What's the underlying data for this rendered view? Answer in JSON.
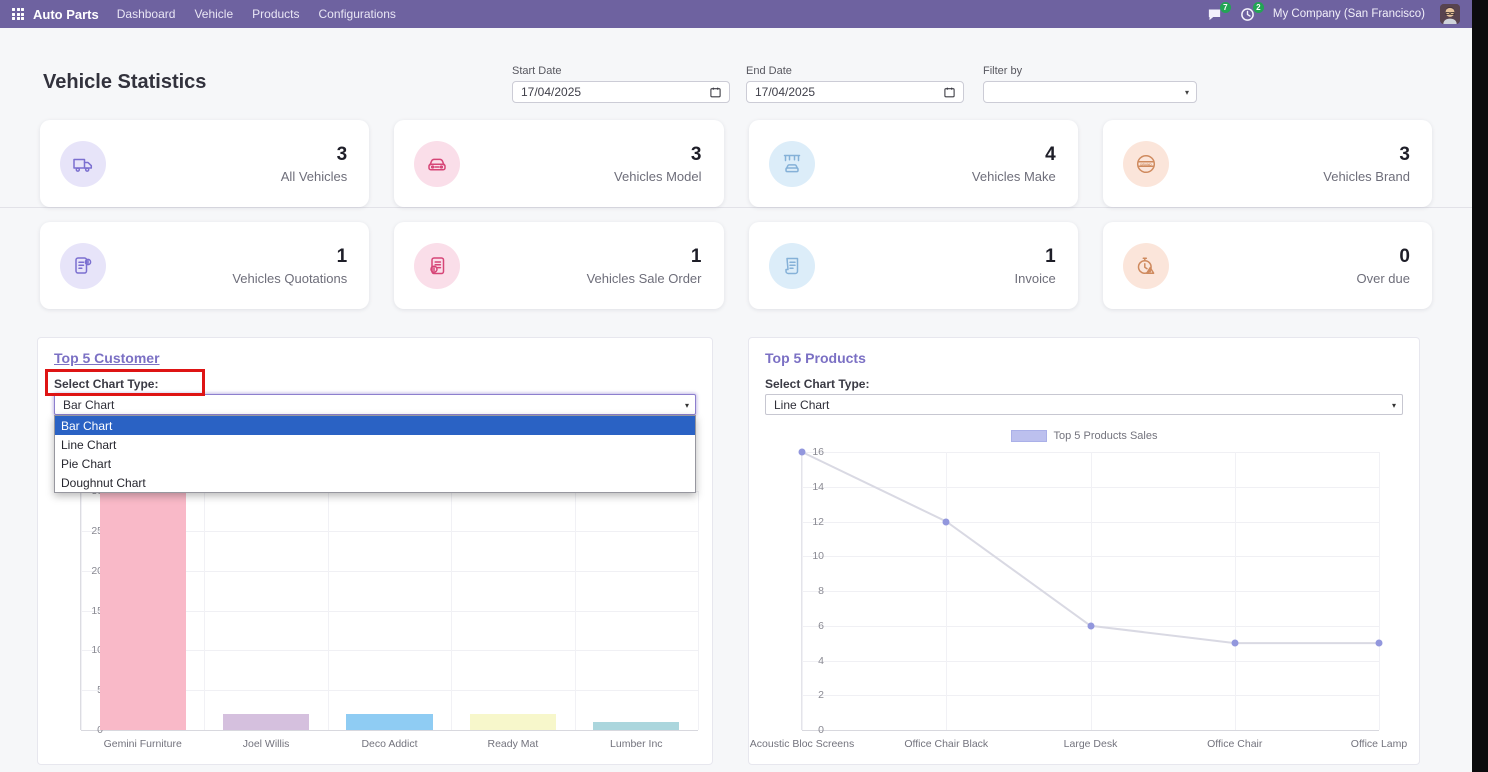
{
  "navbar": {
    "app_name": "Auto Parts",
    "menu_items": [
      "Dashboard",
      "Vehicle",
      "Products",
      "Configurations"
    ],
    "messages_badge": "7",
    "activities_badge": "2",
    "company": "My Company (San Francisco)"
  },
  "header": {
    "title": "Vehicle Statistics",
    "start_date_label": "Start Date",
    "start_date_value": "17/04/2025",
    "end_date_label": "End Date",
    "end_date_value": "17/04/2025",
    "filter_label": "Filter by",
    "filter_value": ""
  },
  "stat_cards": [
    {
      "value": "3",
      "label": "All Vehicles",
      "icon": "truck-icon",
      "fg": "#7b6fd0",
      "bg": "#e7e4f9"
    },
    {
      "value": "3",
      "label": "Vehicles Model",
      "icon": "car-icon",
      "fg": "#d64577",
      "bg": "#fadee9"
    },
    {
      "value": "4",
      "label": "Vehicles Make",
      "icon": "dealership-icon",
      "fg": "#85b1d8",
      "bg": "#dcedf9"
    },
    {
      "value": "3",
      "label": "Vehicles Brand",
      "icon": "brand-badge-icon",
      "fg": "#cf8a5e",
      "bg": "#fbe5da"
    },
    {
      "value": "1",
      "label": "Vehicles Quotations",
      "icon": "quotation-icon",
      "fg": "#7b6fd0",
      "bg": "#e7e4f9"
    },
    {
      "value": "1",
      "label": "Vehicles Sale Order",
      "icon": "sale-order-icon",
      "fg": "#d64577",
      "bg": "#fadee9"
    },
    {
      "value": "1",
      "label": "Invoice",
      "icon": "invoice-icon",
      "fg": "#85b1d8",
      "bg": "#dcedf9"
    },
    {
      "value": "0",
      "label": "Over due",
      "icon": "overdue-clock-icon",
      "fg": "#cf8a5e",
      "bg": "#fbe5da"
    }
  ],
  "customer_section": {
    "title": "Top 5 Customer",
    "select_label": "Select Chart Type:",
    "selected_option": "Bar Chart",
    "dropdown_options": [
      "Bar Chart",
      "Line Chart",
      "Pie Chart",
      "Doughnut Chart"
    ],
    "dropdown_selected_index": 0,
    "annotation": {
      "type": "highlight-box",
      "color": "#de1414",
      "target": "select-chart-type-label"
    }
  },
  "products_section": {
    "title": "Top 5 Products",
    "select_label": "Select Chart Type:",
    "selected_option": "Line Chart",
    "legend_label": "Top 5 Products Sales"
  },
  "chart_data": [
    {
      "id": "top5-customer",
      "type": "bar",
      "title": "Top 5 Customer",
      "categories": [
        "Gemini Furniture",
        "Joel Willis",
        "Deco Addict",
        "Ready Mat",
        "Lumber Inc"
      ],
      "values": [
        30,
        2,
        2,
        2,
        1
      ],
      "bar_colors": [
        "#f9b9c8",
        "#d5c0de",
        "#8fccf3",
        "#f7f7cb",
        "#abd6dd"
      ],
      "ylim": [
        0,
        30
      ],
      "ytick_step": 5,
      "grid": true,
      "legend_position": "none"
    },
    {
      "id": "top5-products",
      "type": "line",
      "title": "Top 5 Products",
      "categories": [
        "Acoustic Bloc Screens",
        "Office Chair Black",
        "Large Desk",
        "Office Chair",
        "Office Lamp"
      ],
      "series": [
        {
          "name": "Top 5 Products Sales",
          "values": [
            16,
            12,
            6,
            5,
            5
          ]
        }
      ],
      "ylim": [
        0,
        16
      ],
      "ytick_step": 2,
      "grid": true,
      "legend_position": "top",
      "line_color": "#d9d9e3",
      "point_color": "#9297dd",
      "legend_swatch_color": "#bcc0ee"
    }
  ]
}
